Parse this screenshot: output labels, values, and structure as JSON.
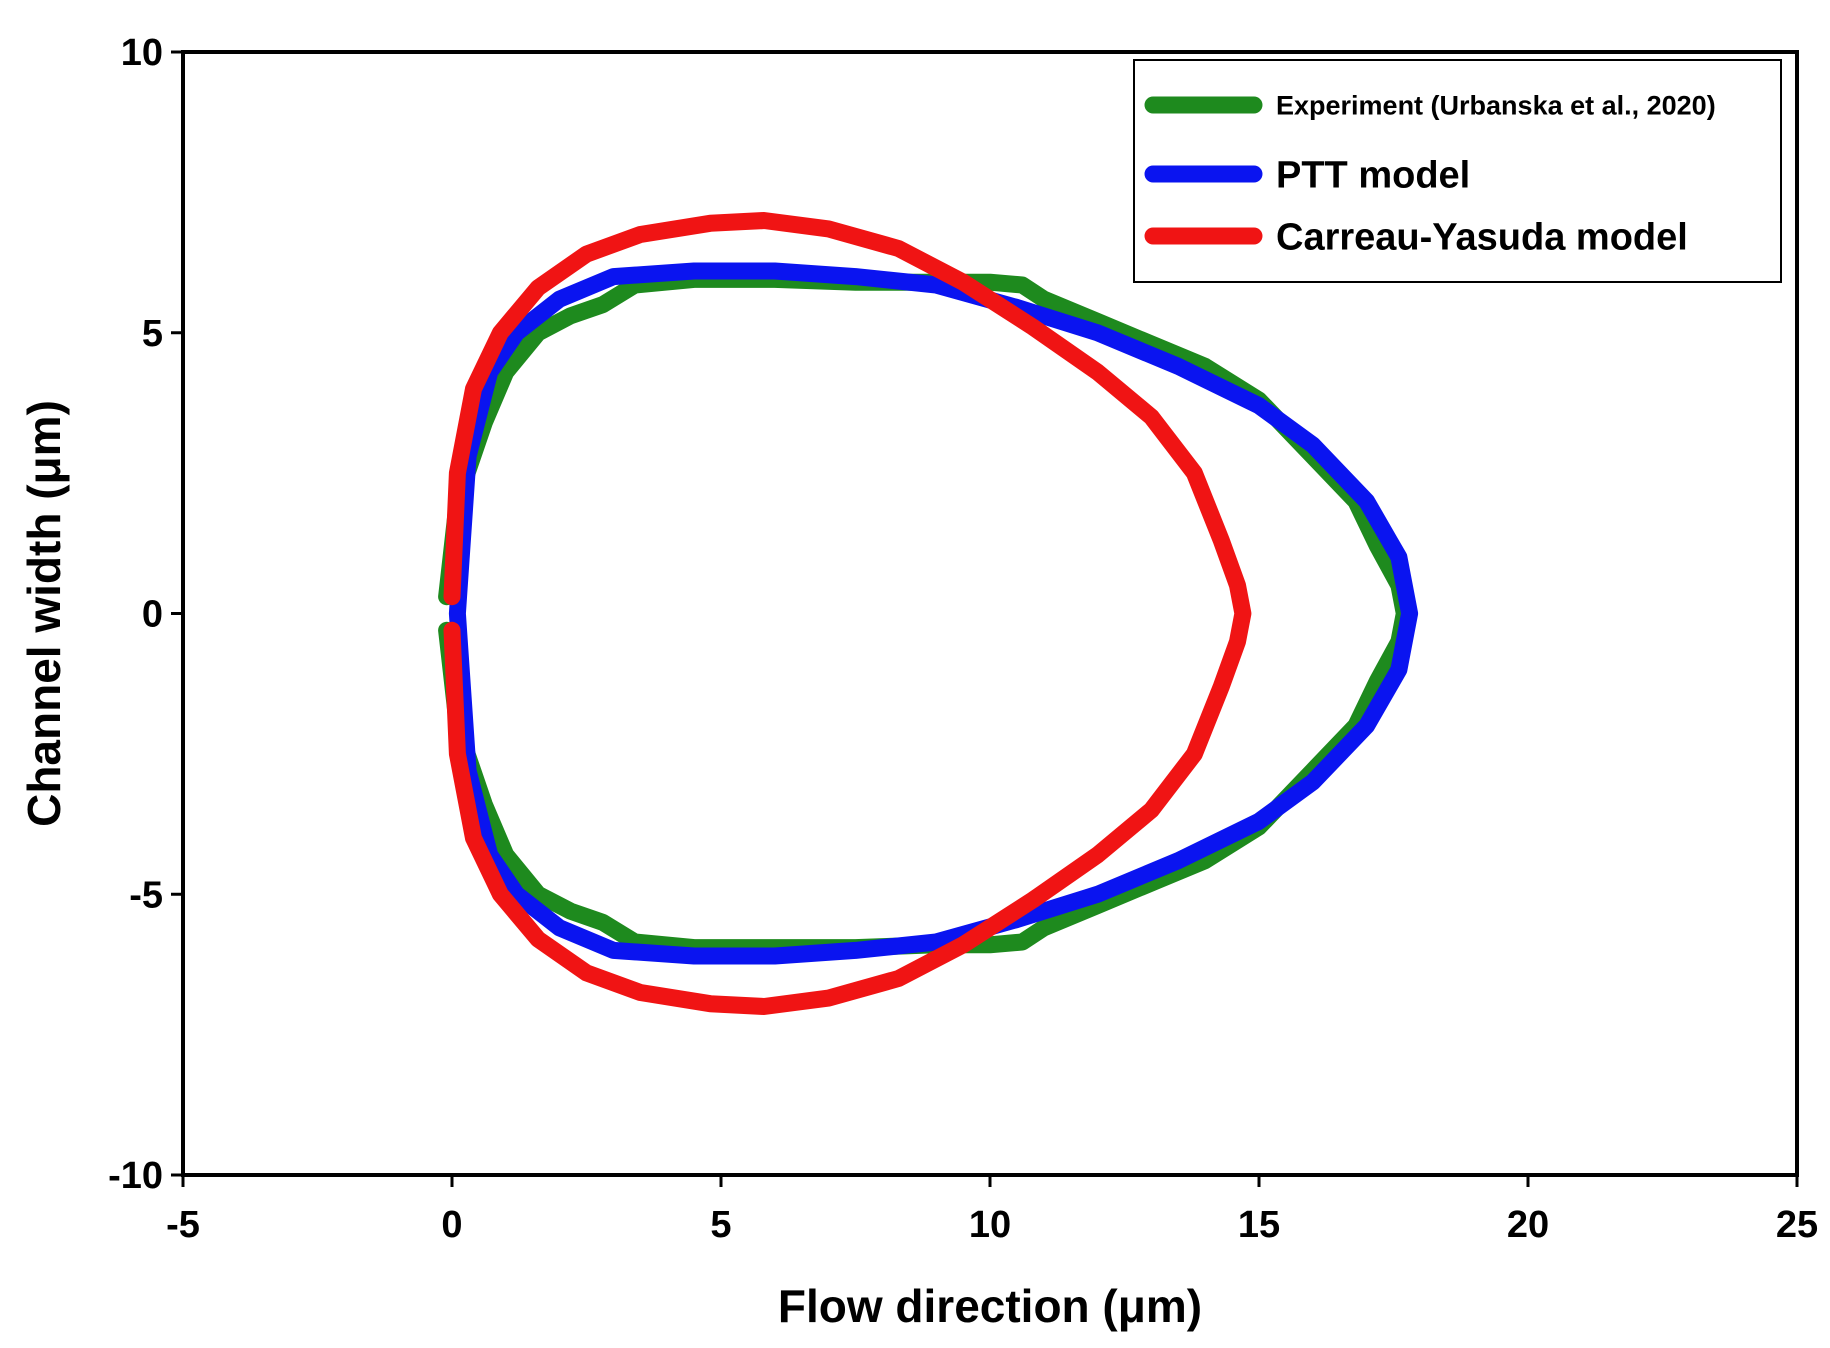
{
  "chart_data": {
    "type": "line",
    "xlabel": "Flow direction (μm)",
    "ylabel": "Channel width (μm)",
    "xlim": [
      -5,
      25
    ],
    "ylim": [
      -10,
      10
    ],
    "xticks": [
      "-5",
      "0",
      "5",
      "10",
      "15",
      "20",
      "25"
    ],
    "yticks": [
      "10",
      "5",
      "0",
      "-5",
      "-10"
    ],
    "grid": false,
    "legend_position": "top-right",
    "series": [
      {
        "name": "Experiment (Urbanska et al., 2020)",
        "color": "#1e8a1e",
        "x": [
          -0.1,
          0.1,
          0.6,
          1.0,
          1.6,
          2.2,
          2.8,
          3.4,
          4.5,
          6.0,
          7.5,
          9.0,
          10.0,
          10.6,
          11.0,
          12.0,
          13.0,
          14.0,
          15.0,
          16.0,
          16.8,
          17.2,
          17.6,
          17.7,
          17.6,
          17.2,
          16.8,
          16.0,
          15.0,
          14.0,
          13.0,
          12.0,
          11.0,
          10.6,
          10.0,
          9.0,
          7.5,
          6.0,
          4.5,
          3.4,
          2.8,
          2.2,
          1.6,
          1.0,
          0.6,
          0.1,
          -0.1
        ],
        "y": [
          0.3,
          2.0,
          3.4,
          4.3,
          5.0,
          5.3,
          5.5,
          5.85,
          5.95,
          5.95,
          5.9,
          5.9,
          5.9,
          5.85,
          5.6,
          5.2,
          4.8,
          4.4,
          3.8,
          2.8,
          2.0,
          1.2,
          0.5,
          0.0,
          -0.5,
          -1.2,
          -2.0,
          -2.8,
          -3.8,
          -4.4,
          -4.8,
          -5.2,
          -5.6,
          -5.85,
          -5.9,
          -5.9,
          -5.95,
          -5.95,
          -5.95,
          -5.85,
          -5.5,
          -5.3,
          -5.0,
          -4.3,
          -3.4,
          -2.0,
          -0.3
        ]
      },
      {
        "name": "PTT model",
        "color": "#0a14f0",
        "x": [
          0.1,
          0.3,
          0.7,
          1.2,
          2.0,
          3.0,
          4.5,
          6.0,
          7.5,
          9.0,
          10.5,
          12.0,
          13.5,
          15.0,
          16.0,
          17.0,
          17.6,
          17.8,
          17.6,
          17.0,
          16.0,
          15.0,
          13.5,
          12.0,
          10.5,
          9.0,
          7.5,
          6.0,
          4.5,
          3.0,
          2.0,
          1.2,
          0.7,
          0.3,
          0.1
        ],
        "y": [
          0.0,
          2.8,
          4.3,
          5.0,
          5.6,
          6.0,
          6.1,
          6.1,
          6.0,
          5.85,
          5.45,
          5.0,
          4.4,
          3.7,
          3.0,
          2.0,
          1.0,
          0.0,
          -1.0,
          -2.0,
          -3.0,
          -3.7,
          -4.4,
          -5.0,
          -5.45,
          -5.85,
          -6.0,
          -6.1,
          -6.1,
          -6.0,
          -5.6,
          -5.0,
          -4.3,
          -2.8,
          0.0
        ]
      },
      {
        "name": "Carreau-Yasuda model",
        "color": "#f01414",
        "x": [
          0.0,
          0.1,
          0.4,
          0.9,
          1.6,
          2.5,
          3.5,
          4.8,
          5.8,
          7.0,
          8.3,
          9.5,
          10.8,
          12.0,
          13.0,
          13.8,
          14.3,
          14.6,
          14.7,
          14.6,
          14.3,
          13.8,
          13.0,
          12.0,
          10.8,
          9.5,
          8.3,
          7.0,
          5.8,
          4.8,
          3.5,
          2.5,
          1.6,
          0.9,
          0.4,
          0.1,
          0.0
        ],
        "y": [
          0.3,
          2.5,
          4.0,
          5.0,
          5.8,
          6.4,
          6.75,
          6.95,
          7.0,
          6.85,
          6.5,
          5.9,
          5.1,
          4.3,
          3.5,
          2.5,
          1.3,
          0.5,
          0.0,
          -0.5,
          -1.3,
          -2.5,
          -3.5,
          -4.3,
          -5.1,
          -5.9,
          -6.5,
          -6.85,
          -7.0,
          -6.95,
          -6.75,
          -6.4,
          -5.8,
          -5.0,
          -4.0,
          -2.5,
          -0.3
        ]
      }
    ]
  }
}
